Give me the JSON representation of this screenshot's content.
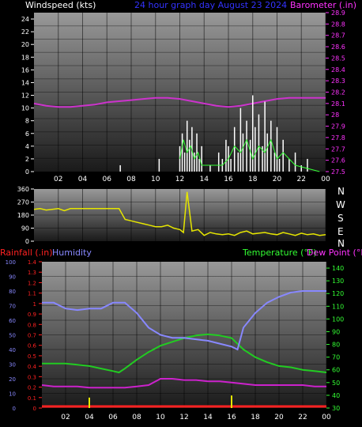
{
  "header": {
    "wind_label": "Windspeed (kts)",
    "title": "24 hour graph day   August 23 2024",
    "baro_label": "Barometer (.in)"
  },
  "lower_header": {
    "rain_label": "Rainfall (.in)",
    "humidity_label": "Humidity",
    "temp_label": "Temperature (°F)",
    "dew_label": "Dew Point (°F)"
  },
  "compass": [
    "N",
    "W",
    "S",
    "E",
    "N"
  ],
  "colors": {
    "wind": "#ffffff",
    "gust": "#33ff33",
    "barometer": "#cc33cc",
    "direction": "#e6e600",
    "rain": "#ff2222",
    "rain_daily": "#e6e600",
    "humidity": "#8888ff",
    "temperature": "#22cc22",
    "dewpoint": "#cc22cc",
    "label_wind": "#ffffff",
    "label_title": "#3333ff",
    "label_baro": "#ff33ff",
    "label_rain": "#ff2222",
    "label_humidity": "#8888ff",
    "label_temp": "#33ff33",
    "label_dew": "#ff33ff"
  },
  "chart_data": [
    {
      "type": "line",
      "name": "wind-barometer",
      "x_ticks": [
        "02",
        "04",
        "06",
        "08",
        "10",
        "12",
        "14",
        "16",
        "18",
        "20",
        "22",
        "00"
      ],
      "y_left_ticks": [
        "0",
        "2",
        "4",
        "6",
        "8",
        "10",
        "12",
        "14",
        "16",
        "18",
        "20",
        "22",
        "24"
      ],
      "y_left_range": [
        0,
        25
      ],
      "y_right_ticks": [
        "27.5",
        "27.6",
        "27.7",
        "27.8",
        "27.9",
        "28",
        "28.1",
        "28.2",
        "28.3",
        "28.4",
        "28.5",
        "28.6",
        "28.7",
        "28.8",
        "28.9"
      ],
      "y_right_range": [
        27.5,
        28.9
      ],
      "x_range": [
        0,
        24
      ],
      "barometer": {
        "x": [
          0,
          1,
          2,
          3,
          4,
          5,
          6,
          7,
          8,
          9,
          10,
          11,
          12,
          13,
          14,
          15,
          16,
          17,
          18,
          19,
          20,
          21,
          22,
          23,
          24
        ],
        "y": [
          28.1,
          28.08,
          28.07,
          28.07,
          28.08,
          28.09,
          28.11,
          28.12,
          28.13,
          28.14,
          28.15,
          28.15,
          28.14,
          28.12,
          28.1,
          28.08,
          28.07,
          28.08,
          28.1,
          28.12,
          28.14,
          28.15,
          28.15,
          28.15,
          28.15
        ]
      },
      "wind": {
        "x": [
          7.0,
          7.1,
          10.0,
          10.3,
          12.0,
          12.2,
          12.4,
          12.6,
          12.8,
          13.0,
          13.2,
          13.4,
          13.6,
          13.8,
          14.5,
          15.0,
          15.2,
          15.5,
          15.8,
          16.0,
          16.2,
          16.5,
          16.8,
          17.0,
          17.2,
          17.5,
          17.8,
          18.0,
          18.2,
          18.5,
          18.8,
          19.0,
          19.2,
          19.5,
          19.8,
          20.0,
          20.2,
          20.5,
          21.0,
          21.5,
          22.0,
          22.5,
          23.5
        ],
        "y": [
          0,
          1,
          0,
          2,
          4,
          6,
          3,
          8,
          5,
          7,
          3,
          6,
          2,
          4,
          1,
          0,
          3,
          2,
          5,
          4,
          2,
          7,
          3,
          10,
          6,
          8,
          5,
          12,
          7,
          9,
          4,
          11,
          6,
          8,
          3,
          7,
          2,
          5,
          2,
          3,
          1,
          2,
          0
        ]
      },
      "gust": {
        "x": [
          12.0,
          12.3,
          12.6,
          12.9,
          13.2,
          13.5,
          13.8,
          15.5,
          16.0,
          16.5,
          17.0,
          17.5,
          18.0,
          18.5,
          19.0,
          19.5,
          20.0,
          20.5,
          21.5,
          23.5
        ],
        "y": [
          2,
          5,
          3,
          4,
          2,
          3,
          1,
          1,
          2,
          4,
          3,
          5,
          2,
          4,
          3,
          5,
          2,
          3,
          1,
          0
        ]
      }
    },
    {
      "type": "scatter",
      "name": "wind-direction",
      "y_ticks": [
        "0",
        "90",
        "180",
        "270",
        "360"
      ],
      "y_range": [
        0,
        360
      ],
      "x_range": [
        0,
        24
      ],
      "x": [
        0,
        0.5,
        1,
        1.5,
        2,
        2.5,
        3,
        3.5,
        4,
        4.5,
        5,
        5.5,
        6,
        6.5,
        7,
        7.5,
        8,
        8.5,
        9,
        9.5,
        10,
        10.5,
        11,
        11.5,
        12,
        12.3,
        12.6,
        13,
        13.5,
        14,
        14.5,
        15,
        15.5,
        16,
        16.5,
        17,
        17.5,
        18,
        18.5,
        19,
        19.5,
        20,
        20.5,
        21,
        21.5,
        22,
        22.5,
        23,
        23.5,
        24
      ],
      "y": [
        220,
        225,
        215,
        220,
        225,
        210,
        225,
        225,
        225,
        225,
        225,
        225,
        225,
        225,
        225,
        150,
        140,
        130,
        120,
        110,
        100,
        100,
        110,
        90,
        80,
        60,
        340,
        70,
        80,
        40,
        60,
        50,
        45,
        50,
        40,
        60,
        70,
        50,
        55,
        60,
        50,
        45,
        60,
        50,
        40,
        55,
        45,
        50,
        40,
        45
      ]
    },
    {
      "type": "line",
      "name": "temp-humidity-rain",
      "x_ticks": [
        "02",
        "04",
        "06",
        "08",
        "10",
        "12",
        "14",
        "16",
        "18",
        "20",
        "22",
        "00"
      ],
      "humidity_ticks": [
        "0",
        "10",
        "20",
        "30",
        "40",
        "50",
        "60",
        "70",
        "80",
        "90",
        "100"
      ],
      "humidity_range": [
        0,
        100
      ],
      "rain_ticks": [
        "0",
        "0.1",
        "0.2",
        "0.3",
        "0.4",
        "0.5",
        "0.6",
        "0.7",
        "0.8",
        "0.9",
        "1",
        "1.1",
        "1.2",
        "1.3",
        "1.4"
      ],
      "rain_range": [
        0,
        1.4
      ],
      "temp_ticks": [
        "30",
        "40",
        "50",
        "60",
        "70",
        "80",
        "90",
        "100",
        "110",
        "120",
        "130",
        "140"
      ],
      "temp_range": [
        30,
        145
      ],
      "x_range": [
        0,
        24
      ],
      "humidity": {
        "x": [
          0,
          1,
          2,
          3,
          4,
          5,
          6,
          7,
          8,
          9,
          10,
          11,
          12,
          13,
          14,
          15,
          16,
          16.5,
          17,
          18,
          19,
          20,
          21,
          22,
          23,
          24
        ],
        "y": [
          72,
          72,
          68,
          67,
          68,
          68,
          72,
          72,
          65,
          55,
          50,
          48,
          48,
          47,
          46,
          44,
          42,
          40,
          55,
          65,
          72,
          76,
          79,
          80,
          80,
          80
        ]
      },
      "temperature": {
        "x": [
          0,
          1,
          2,
          3,
          4,
          5,
          6,
          6.5,
          7,
          8,
          9,
          10,
          11,
          12,
          13,
          14,
          15,
          16,
          17,
          18,
          19,
          20,
          21,
          22,
          23,
          24
        ],
        "y": [
          65,
          65,
          65,
          64,
          63,
          61,
          59,
          58,
          61,
          68,
          74,
          79,
          82,
          85,
          87,
          88,
          87,
          85,
          76,
          70,
          66,
          63,
          62,
          60,
          59,
          58
        ]
      },
      "dewpoint": {
        "x": [
          0,
          1,
          2,
          3,
          4,
          5,
          6,
          7,
          8,
          9,
          10,
          11,
          12,
          13,
          14,
          15,
          16,
          17,
          18,
          19,
          20,
          21,
          22,
          23,
          24
        ],
        "y": [
          48,
          47,
          47,
          47,
          46,
          46,
          46,
          46,
          47,
          48,
          53,
          53,
          52,
          52,
          51,
          51,
          50,
          49,
          48,
          48,
          48,
          48,
          48,
          47,
          47
        ]
      },
      "rain": {
        "x": [
          0,
          24
        ],
        "y": [
          0,
          0
        ]
      },
      "rain_daily": {
        "x": [
          4,
          16
        ],
        "y": [
          0.1,
          0.12
        ]
      }
    }
  ]
}
